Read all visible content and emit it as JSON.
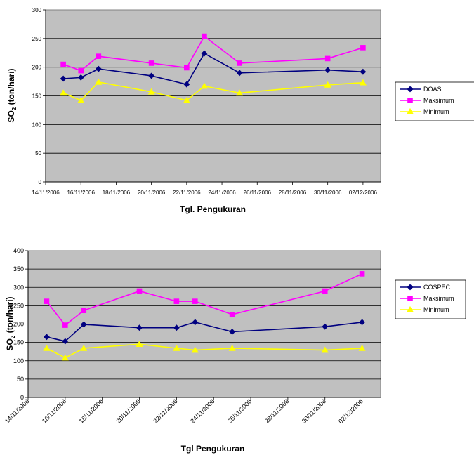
{
  "chart_data": [
    {
      "type": "line",
      "title": "",
      "xlabel": "Tgl. Pengukuran",
      "ylabel": "SO2 (ton/hari)",
      "ylabel_main": "SO",
      "ylabel_sub": "2",
      "ylabel_rest": " (ton/hari)",
      "ylim": [
        0,
        300
      ],
      "yticks": [
        0,
        50,
        100,
        150,
        200,
        250,
        300
      ],
      "xlim": [
        "2006-11-14",
        "2006-12-03"
      ],
      "xticks": [
        "14/11/2006",
        "16/11/2006",
        "18/11/2006",
        "20/11/2006",
        "22/11/2006",
        "24/11/2006",
        "26/11/2006",
        "28/11/2006",
        "30/11/2006",
        "02/12/2006"
      ],
      "x": [
        "2006-11-15",
        "2006-11-16",
        "2006-11-17",
        "2006-11-20",
        "2006-11-22",
        "2006-11-23",
        "2006-11-25",
        "2006-11-30",
        "2006-12-02"
      ],
      "grid": true,
      "legend_position": "right",
      "series": [
        {
          "name": "DOAS",
          "color": "#000080",
          "marker": "diamond",
          "values": [
            180,
            182,
            197,
            185,
            170,
            224,
            190,
            195,
            192
          ]
        },
        {
          "name": "Maksimum",
          "color": "#FF00FF",
          "marker": "square",
          "values": [
            205,
            194,
            219,
            207,
            199,
            254,
            207,
            215,
            234
          ]
        },
        {
          "name": "Minimum",
          "color": "#FFFF00",
          "marker": "triangle",
          "values": [
            155,
            142,
            174,
            157,
            142,
            167,
            155,
            169,
            173
          ]
        }
      ]
    },
    {
      "type": "line",
      "title": "",
      "xlabel": "Tgl Pengukuran",
      "ylabel": "SO2 (ton/hari)",
      "ylabel_main": "SO",
      "ylabel_sub": "2",
      "ylabel_rest": " (ton/hari)",
      "ylim": [
        0,
        400
      ],
      "yticks": [
        0,
        50,
        100,
        150,
        200,
        250,
        300,
        350,
        400
      ],
      "xlim": [
        "2006-11-14",
        "2006-12-03"
      ],
      "xticks": [
        "14/11/2006",
        "16/11/2006",
        "18/11/2006",
        "20/11/2006",
        "22/11/2006",
        "24/11/2006",
        "26/11/2006",
        "28/11/2006",
        "30/11/2006",
        "02/12/2006"
      ],
      "x": [
        "2006-11-15",
        "2006-11-16",
        "2006-11-17",
        "2006-11-20",
        "2006-11-22",
        "2006-11-23",
        "2006-11-25",
        "2006-11-30",
        "2006-12-02"
      ],
      "grid": true,
      "legend_position": "right",
      "series": [
        {
          "name": "COSPEC",
          "color": "#000080",
          "marker": "diamond",
          "values": [
            165,
            153,
            199,
            190,
            190,
            205,
            179,
            193,
            205
          ]
        },
        {
          "name": "Maksimum",
          "color": "#FF00FF",
          "marker": "square",
          "values": [
            262,
            197,
            237,
            290,
            262,
            262,
            226,
            290,
            337
          ]
        },
        {
          "name": "Minimum",
          "color": "#FFFF00",
          "marker": "triangle",
          "values": [
            134,
            108,
            134,
            145,
            134,
            129,
            134,
            129,
            134
          ]
        }
      ]
    }
  ]
}
